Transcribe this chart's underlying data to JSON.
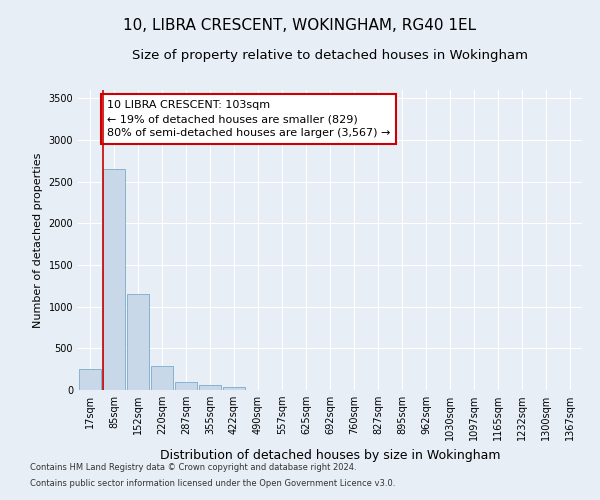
{
  "title": "10, LIBRA CRESCENT, WOKINGHAM, RG40 1EL",
  "subtitle": "Size of property relative to detached houses in Wokingham",
  "xlabel": "Distribution of detached houses by size in Wokingham",
  "ylabel": "Number of detached properties",
  "bar_color": "#c8d8e8",
  "bar_edge_color": "#7aaac8",
  "categories": [
    "17sqm",
    "85sqm",
    "152sqm",
    "220sqm",
    "287sqm",
    "355sqm",
    "422sqm",
    "490sqm",
    "557sqm",
    "625sqm",
    "692sqm",
    "760sqm",
    "827sqm",
    "895sqm",
    "962sqm",
    "1030sqm",
    "1097sqm",
    "1165sqm",
    "1232sqm",
    "1300sqm",
    "1367sqm"
  ],
  "values": [
    250,
    2650,
    1150,
    285,
    100,
    60,
    40,
    5,
    2,
    2,
    1,
    1,
    1,
    0,
    0,
    0,
    0,
    0,
    0,
    0,
    0
  ],
  "ylim": [
    0,
    3600
  ],
  "yticks": [
    0,
    500,
    1000,
    1500,
    2000,
    2500,
    3000,
    3500
  ],
  "property_line_color": "#cc0000",
  "property_line_index": 0.55,
  "annotation_text": "10 LIBRA CRESCENT: 103sqm\n← 19% of detached houses are smaller (829)\n80% of semi-detached houses are larger (3,567) →",
  "annotation_box_color": "#ffffff",
  "annotation_box_edge_color": "#cc0000",
  "footnote1": "Contains HM Land Registry data © Crown copyright and database right 2024.",
  "footnote2": "Contains public sector information licensed under the Open Government Licence v3.0.",
  "background_color": "#e8eef5",
  "plot_bg_color": "#e8eef5",
  "grid_color": "#ffffff",
  "title_fontsize": 11,
  "subtitle_fontsize": 9.5,
  "ylabel_fontsize": 8,
  "xlabel_fontsize": 9,
  "tick_fontsize": 7,
  "annotation_fontsize": 8,
  "footnote_fontsize": 6
}
